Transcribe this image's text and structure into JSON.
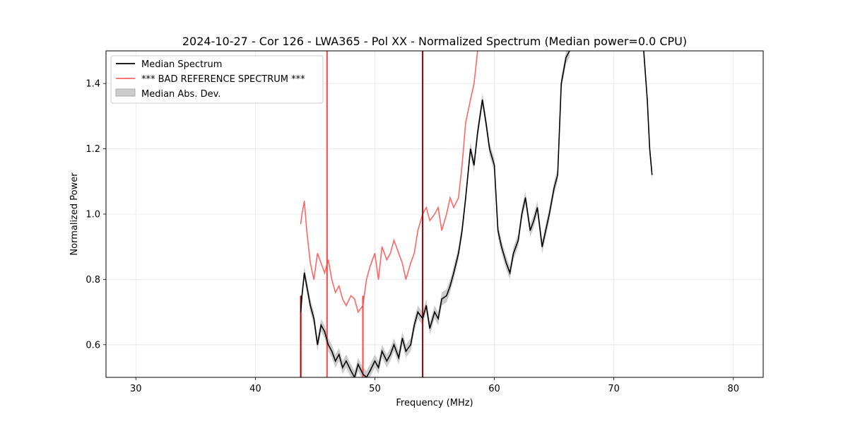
{
  "chart_data": {
    "type": "line",
    "title": "2024-10-27 - Cor 126 - LWA365 - Pol XX - Normalized Spectrum (Median power=0.0 CPU)",
    "xlabel": "Frequency (MHz)",
    "ylabel": "Normalized Power",
    "xlim": [
      27.5,
      82.5
    ],
    "ylim": [
      0.5,
      1.5
    ],
    "xticks": [
      30,
      40,
      50,
      60,
      70,
      80
    ],
    "yticks": [
      0.6,
      0.8,
      1.0,
      1.2,
      1.4
    ],
    "xtick_labels": [
      "30",
      "40",
      "50",
      "60",
      "70",
      "80"
    ],
    "ytick_labels": [
      "0.6",
      "0.8",
      "1.0",
      "1.2",
      "1.4"
    ],
    "grid": true,
    "legend_position": "top-left",
    "legend": [
      {
        "label": "Median Spectrum",
        "kind": "line",
        "color": "#000000"
      },
      {
        "label": "*** BAD REFERENCE SPECTRUM ***",
        "kind": "line",
        "color": "#ff6666"
      },
      {
        "label": "Median Abs. Dev.",
        "kind": "patch",
        "color": "#cccccc"
      }
    ],
    "series": [
      {
        "name": "Median Spectrum",
        "color": "#000000",
        "x": [
          43.8,
          43.9,
          44.1,
          44.3,
          44.6,
          44.9,
          45.2,
          45.5,
          45.8,
          46.1,
          46.4,
          46.7,
          47.0,
          47.3,
          47.6,
          48.0,
          48.3,
          48.6,
          49.0,
          49.3,
          49.6,
          50.0,
          50.3,
          50.6,
          51.0,
          51.3,
          51.6,
          52.0,
          52.3,
          52.6,
          53.0,
          53.3,
          53.6,
          54.0,
          54.3,
          54.6,
          55.0,
          55.3,
          55.6,
          56.0,
          56.3,
          56.6,
          57.0,
          57.3,
          57.6,
          58.0,
          58.3,
          58.6,
          59.0,
          59.3,
          59.6,
          60.0,
          60.3,
          60.6,
          61.0,
          61.3,
          61.6,
          62.0,
          62.3,
          62.6,
          63.0,
          63.3,
          63.6,
          64.0,
          64.3,
          64.6,
          65.0,
          65.3,
          65.6,
          66.0,
          66.3
        ],
        "values": [
          0.7,
          0.75,
          0.82,
          0.78,
          0.72,
          0.68,
          0.6,
          0.66,
          0.64,
          0.6,
          0.58,
          0.55,
          0.57,
          0.53,
          0.55,
          0.52,
          0.5,
          0.54,
          0.51,
          0.5,
          0.52,
          0.55,
          0.53,
          0.58,
          0.55,
          0.57,
          0.6,
          0.56,
          0.62,
          0.58,
          0.6,
          0.66,
          0.7,
          0.68,
          0.72,
          0.65,
          0.7,
          0.68,
          0.74,
          0.75,
          0.78,
          0.82,
          0.88,
          0.95,
          1.05,
          1.2,
          1.15,
          1.25,
          1.35,
          1.28,
          1.2,
          1.15,
          0.95,
          0.9,
          0.85,
          0.82,
          0.88,
          0.92,
          1.0,
          1.05,
          0.95,
          0.98,
          1.02,
          0.9,
          0.95,
          1.0,
          1.08,
          1.12,
          1.4,
          1.48,
          1.5
        ],
        "segments_extra": {
          "x": [
            72.5,
            72.8,
            73.0,
            73.2
          ],
          "values": [
            1.5,
            1.35,
            1.2,
            1.12
          ]
        }
      },
      {
        "name": "*** BAD REFERENCE SPECTRUM ***",
        "color": "#ff6666",
        "x": [
          43.8,
          43.9,
          44.1,
          44.3,
          44.6,
          44.9,
          45.2,
          45.5,
          45.8,
          46.1,
          46.4,
          46.7,
          47.0,
          47.3,
          47.6,
          48.0,
          48.3,
          48.6,
          49.0,
          49.3,
          49.6,
          50.0,
          50.3,
          50.6,
          51.0,
          51.3,
          51.6,
          52.0,
          52.3,
          52.6,
          53.0,
          53.3,
          53.6,
          54.0,
          54.3,
          54.6,
          55.0,
          55.3,
          55.6,
          56.0,
          56.3,
          56.6,
          57.0,
          57.3,
          57.6,
          58.0,
          58.3,
          58.6
        ],
        "values": [
          0.97,
          1.0,
          1.04,
          0.95,
          0.85,
          0.8,
          0.88,
          0.85,
          0.82,
          0.86,
          0.8,
          0.76,
          0.78,
          0.74,
          0.72,
          0.75,
          0.74,
          0.7,
          0.72,
          0.8,
          0.84,
          0.88,
          0.8,
          0.9,
          0.86,
          0.88,
          0.92,
          0.88,
          0.85,
          0.8,
          0.85,
          0.88,
          0.95,
          1.0,
          1.02,
          0.98,
          1.0,
          1.02,
          0.95,
          1.0,
          1.05,
          1.02,
          1.05,
          1.15,
          1.28,
          1.35,
          1.4,
          1.5
        ]
      }
    ],
    "mad_band": {
      "name": "Median Abs. Dev.",
      "color": "#cccccc",
      "half_width": 0.02
    },
    "vertical_spikes": [
      {
        "x": 43.8,
        "color": "#aa0000",
        "from": 0.5,
        "to": 0.75
      },
      {
        "x": 46.0,
        "color": "#ff4444",
        "from": 0.5,
        "to": 1.5
      },
      {
        "x": 49.0,
        "color": "#ff4444",
        "from": 0.5,
        "to": 0.75
      },
      {
        "x": 54.0,
        "color": "#990000",
        "from": 0.5,
        "to": 1.5
      }
    ]
  }
}
